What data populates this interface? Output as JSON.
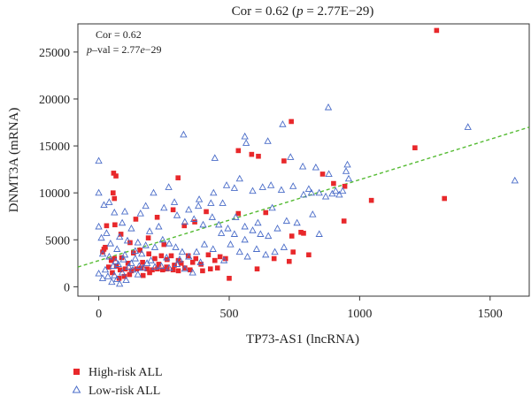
{
  "chart_data": {
    "type": "scatter",
    "title_main": "Cor = 0.62 (",
    "title_p": "p",
    "title_rest": " = 2.77E−29)",
    "inset_cor": "Cor = 0.62",
    "inset_p": "p",
    "inset_val_prefix": "–val = 2.77",
    "inset_e": "e",
    "inset_exp": "−29",
    "xlabel": "TP73-AS1 (lncRNA)",
    "ylabel": "DNMT3A (mRNA)",
    "xlim": [
      -80,
      1650
    ],
    "ylim": [
      -1000,
      28000
    ],
    "x_ticks": [
      0,
      500,
      1000,
      1500
    ],
    "x_tick_labels": [
      "0",
      "500",
      "1000",
      "1500"
    ],
    "y_ticks": [
      0,
      5000,
      10000,
      15000,
      20000,
      25000
    ],
    "y_tick_labels": [
      "0",
      "5000",
      "10000",
      "15000",
      "20000",
      "25000"
    ],
    "grid": false,
    "legend_position": "bottom-left",
    "trend_line": {
      "x": [
        -80,
        1650
      ],
      "y": [
        2100,
        17000
      ],
      "color": "#55bb33",
      "style": "dashed"
    },
    "series": [
      {
        "name": "High-risk ALL",
        "marker": "square",
        "color": "#e8282b",
        "points": [
          [
            1295,
            27300
          ],
          [
            738,
            17600
          ],
          [
            535,
            14500
          ],
          [
            586,
            14100
          ],
          [
            612,
            13900
          ],
          [
            1212,
            14800
          ],
          [
            710,
            13400
          ],
          [
            57,
            12100
          ],
          [
            66,
            11800
          ],
          [
            304,
            11600
          ],
          [
            858,
            12000
          ],
          [
            900,
            11000
          ],
          [
            1325,
            9400
          ],
          [
            943,
            10700
          ],
          [
            1045,
            9200
          ],
          [
            55,
            10000
          ],
          [
            60,
            9400
          ],
          [
            940,
            7000
          ],
          [
            775,
            5800
          ],
          [
            785,
            5700
          ],
          [
            740,
            5400
          ],
          [
            745,
            3700
          ],
          [
            805,
            3400
          ],
          [
            730,
            2700
          ],
          [
            607,
            1900
          ],
          [
            500,
            900
          ],
          [
            535,
            7800
          ],
          [
            412,
            8000
          ],
          [
            368,
            6900
          ],
          [
            328,
            6500
          ],
          [
            285,
            8200
          ],
          [
            224,
            7400
          ],
          [
            142,
            7200
          ],
          [
            62,
            6600
          ],
          [
            30,
            6500
          ],
          [
            25,
            4200
          ],
          [
            15,
            3700
          ],
          [
            85,
            5600
          ],
          [
            120,
            4700
          ],
          [
            158,
            3900
          ],
          [
            192,
            3500
          ],
          [
            215,
            3000
          ],
          [
            240,
            3300
          ],
          [
            262,
            2900
          ],
          [
            278,
            3300
          ],
          [
            305,
            2800
          ],
          [
            343,
            3300
          ],
          [
            372,
            3000
          ],
          [
            392,
            2400
          ],
          [
            420,
            3400
          ],
          [
            445,
            2800
          ],
          [
            465,
            3200
          ],
          [
            330,
            2000
          ],
          [
            350,
            1800
          ],
          [
            305,
            1700
          ],
          [
            285,
            1800
          ],
          [
            262,
            1900
          ],
          [
            245,
            1800
          ],
          [
            225,
            1900
          ],
          [
            205,
            1800
          ],
          [
            185,
            1900
          ],
          [
            163,
            2000
          ],
          [
            145,
            1900
          ],
          [
            125,
            1700
          ],
          [
            102,
            1900
          ],
          [
            82,
            1800
          ],
          [
            68,
            2200
          ],
          [
            52,
            1500
          ],
          [
            38,
            2100
          ],
          [
            118,
            1300
          ],
          [
            98,
            1100
          ],
          [
            78,
            900
          ],
          [
            170,
            1200
          ],
          [
            195,
            1500
          ],
          [
            48,
            2800
          ],
          [
            112,
            2500
          ],
          [
            88,
            3100
          ],
          [
            20,
            4000
          ],
          [
            60,
            3000
          ],
          [
            133,
            3600
          ],
          [
            168,
            2600
          ],
          [
            230,
            2400
          ],
          [
            260,
            2100
          ],
          [
            290,
            2300
          ],
          [
            316,
            2500
          ],
          [
            360,
            2600
          ],
          [
            398,
            1700
          ],
          [
            428,
            1900
          ],
          [
            455,
            2000
          ],
          [
            486,
            3000
          ],
          [
            640,
            7900
          ],
          [
            672,
            3000
          ],
          [
            190,
            5200
          ],
          [
            250,
            4500
          ]
        ]
      },
      {
        "name": "Low-risk ALL",
        "marker": "triangle",
        "color": "#4a6cc8",
        "points": [
          [
            880,
            19100
          ],
          [
            1415,
            17000
          ],
          [
            1595,
            11300
          ],
          [
            325,
            16200
          ],
          [
            705,
            17300
          ],
          [
            648,
            15500
          ],
          [
            560,
            16000
          ],
          [
            445,
            13700
          ],
          [
            565,
            15300
          ],
          [
            735,
            13800
          ],
          [
            0,
            13400
          ],
          [
            782,
            12800
          ],
          [
            832,
            12700
          ],
          [
            953,
            13000
          ],
          [
            0,
            10000
          ],
          [
            40,
            9000
          ],
          [
            268,
            10600
          ],
          [
            210,
            10000
          ],
          [
            345,
            8200
          ],
          [
            382,
            8600
          ],
          [
            430,
            8900
          ],
          [
            475,
            8900
          ],
          [
            490,
            10800
          ],
          [
            520,
            10500
          ],
          [
            540,
            11500
          ],
          [
            590,
            10200
          ],
          [
            628,
            10600
          ],
          [
            660,
            10800
          ],
          [
            700,
            10300
          ],
          [
            745,
            10700
          ],
          [
            785,
            9800
          ],
          [
            815,
            10000
          ],
          [
            845,
            10000
          ],
          [
            870,
            9600
          ],
          [
            895,
            9900
          ],
          [
            908,
            10200
          ],
          [
            922,
            9800
          ],
          [
            935,
            10200
          ],
          [
            948,
            12300
          ],
          [
            958,
            11500
          ],
          [
            882,
            12000
          ],
          [
            805,
            10400
          ],
          [
            20,
            8700
          ],
          [
            60,
            7900
          ],
          [
            100,
            8000
          ],
          [
            160,
            7800
          ],
          [
            180,
            8600
          ],
          [
            250,
            8400
          ],
          [
            300,
            7600
          ],
          [
            330,
            6900
          ],
          [
            365,
            7200
          ],
          [
            400,
            6600
          ],
          [
            435,
            7400
          ],
          [
            460,
            6600
          ],
          [
            495,
            6200
          ],
          [
            525,
            7400
          ],
          [
            560,
            6400
          ],
          [
            590,
            6000
          ],
          [
            620,
            5600
          ],
          [
            650,
            5400
          ],
          [
            685,
            6200
          ],
          [
            720,
            7000
          ],
          [
            760,
            6800
          ],
          [
            820,
            7700
          ],
          [
            845,
            5600
          ],
          [
            0,
            6400
          ],
          [
            30,
            5700
          ],
          [
            80,
            5300
          ],
          [
            110,
            4900
          ],
          [
            150,
            4700
          ],
          [
            180,
            4400
          ],
          [
            215,
            4200
          ],
          [
            245,
            5000
          ],
          [
            270,
            4600
          ],
          [
            295,
            4200
          ],
          [
            320,
            3700
          ],
          [
            345,
            3200
          ],
          [
            375,
            3700
          ],
          [
            405,
            4500
          ],
          [
            438,
            4000
          ],
          [
            470,
            5700
          ],
          [
            505,
            4500
          ],
          [
            540,
            3700
          ],
          [
            570,
            3200
          ],
          [
            605,
            4000
          ],
          [
            640,
            3400
          ],
          [
            675,
            3700
          ],
          [
            710,
            4200
          ],
          [
            15,
            3500
          ],
          [
            40,
            3200
          ],
          [
            65,
            2700
          ],
          [
            95,
            2900
          ],
          [
            125,
            2500
          ],
          [
            155,
            2200
          ],
          [
            185,
            2500
          ],
          [
            215,
            2100
          ],
          [
            240,
            2200
          ],
          [
            270,
            2000
          ],
          [
            300,
            2400
          ],
          [
            330,
            1900
          ],
          [
            360,
            1500
          ],
          [
            0,
            1400
          ],
          [
            15,
            900
          ],
          [
            35,
            1100
          ],
          [
            50,
            500
          ],
          [
            60,
            1200
          ],
          [
            70,
            800
          ],
          [
            80,
            300
          ],
          [
            90,
            1500
          ],
          [
            105,
            700
          ],
          [
            115,
            2100
          ],
          [
            130,
            1800
          ],
          [
            150,
            1300
          ],
          [
            170,
            2000
          ],
          [
            25,
            1800
          ],
          [
            55,
            2200
          ],
          [
            75,
            2400
          ],
          [
            100,
            3400
          ],
          [
            140,
            3000
          ],
          [
            200,
            2800
          ],
          [
            260,
            3100
          ],
          [
            310,
            2900
          ],
          [
            390,
            2600
          ],
          [
            480,
            2800
          ],
          [
            560,
            5000
          ],
          [
            520,
            5600
          ],
          [
            610,
            6800
          ],
          [
            665,
            8400
          ],
          [
            440,
            10000
          ],
          [
            385,
            9300
          ],
          [
            290,
            9000
          ],
          [
            230,
            6400
          ],
          [
            195,
            5900
          ],
          [
            125,
            6200
          ],
          [
            90,
            6800
          ],
          [
            10,
            5200
          ],
          [
            45,
            4600
          ],
          [
            70,
            4000
          ],
          [
            140,
            3800
          ],
          [
            165,
            3500
          ]
        ]
      }
    ]
  }
}
